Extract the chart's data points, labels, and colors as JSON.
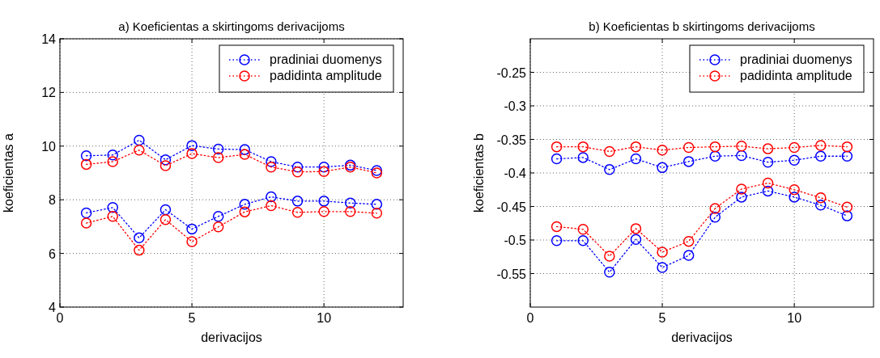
{
  "chart_data": [
    {
      "type": "line",
      "title": "a) Koeficientas a skirtingoms derivacijoms",
      "xlabel": "derivacijos",
      "ylabel": "koeficientas a",
      "x": [
        1,
        2,
        3,
        4,
        5,
        6,
        7,
        8,
        9,
        10,
        11,
        12
      ],
      "xlim": [
        0,
        13
      ],
      "xticks": [
        0,
        5,
        10
      ],
      "ylim": [
        4,
        14
      ],
      "yticks": [
        4,
        6,
        8,
        10,
        12,
        14
      ],
      "grid": true,
      "legend": "top right",
      "marker": "circle",
      "line_style": "dotted",
      "series": [
        {
          "name": "pradiniai duomenys",
          "color": "#0000ff",
          "values": [
            9.64,
            9.67,
            10.22,
            9.49,
            10.02,
            9.89,
            9.87,
            9.42,
            9.22,
            9.22,
            9.29,
            9.09
          ]
        },
        {
          "name": "padidinta amplitude",
          "color": "#ff0000",
          "values": [
            9.32,
            9.42,
            9.85,
            9.27,
            9.72,
            9.57,
            9.69,
            9.22,
            9.04,
            9.05,
            9.22,
            9.0
          ]
        },
        {
          "color": "#0000ff",
          "values": [
            7.51,
            7.71,
            6.58,
            7.63,
            6.91,
            7.38,
            7.83,
            8.11,
            7.95,
            7.95,
            7.88,
            7.83
          ]
        },
        {
          "color": "#ff0000",
          "values": [
            7.13,
            7.38,
            6.12,
            7.26,
            6.44,
            6.99,
            7.55,
            7.78,
            7.53,
            7.56,
            7.56,
            7.5
          ]
        }
      ]
    },
    {
      "type": "line",
      "title": "b) Koeficientas b skirtingoms derivacijoms",
      "xlabel": "derivacijos",
      "ylabel": "koeficientas b",
      "x": [
        1,
        2,
        3,
        4,
        5,
        6,
        7,
        8,
        9,
        10,
        11,
        12
      ],
      "xlim": [
        0,
        13
      ],
      "xticks": [
        0,
        5,
        10
      ],
      "ylim": [
        -0.6,
        -0.2
      ],
      "yticks": [
        -0.55,
        -0.5,
        -0.45,
        -0.4,
        -0.35,
        -0.3,
        -0.25
      ],
      "grid": true,
      "legend": "top right",
      "marker": "circle",
      "line_style": "dotted",
      "series": [
        {
          "name": "pradiniai duomenys",
          "color": "#0000ff",
          "values": [
            -0.379,
            -0.377,
            -0.395,
            -0.379,
            -0.392,
            -0.383,
            -0.375,
            -0.374,
            -0.384,
            -0.381,
            -0.375,
            -0.375
          ]
        },
        {
          "name": "padidinta amplitude",
          "color": "#ff0000",
          "values": [
            -0.361,
            -0.361,
            -0.368,
            -0.361,
            -0.366,
            -0.362,
            -0.361,
            -0.36,
            -0.364,
            -0.362,
            -0.359,
            -0.361
          ]
        },
        {
          "color": "#0000ff",
          "values": [
            -0.501,
            -0.501,
            -0.548,
            -0.499,
            -0.541,
            -0.523,
            -0.466,
            -0.436,
            -0.427,
            -0.436,
            -0.448,
            -0.464
          ]
        },
        {
          "color": "#ff0000",
          "values": [
            -0.48,
            -0.484,
            -0.524,
            -0.483,
            -0.518,
            -0.502,
            -0.453,
            -0.424,
            -0.415,
            -0.425,
            -0.437,
            -0.451
          ]
        }
      ]
    }
  ]
}
